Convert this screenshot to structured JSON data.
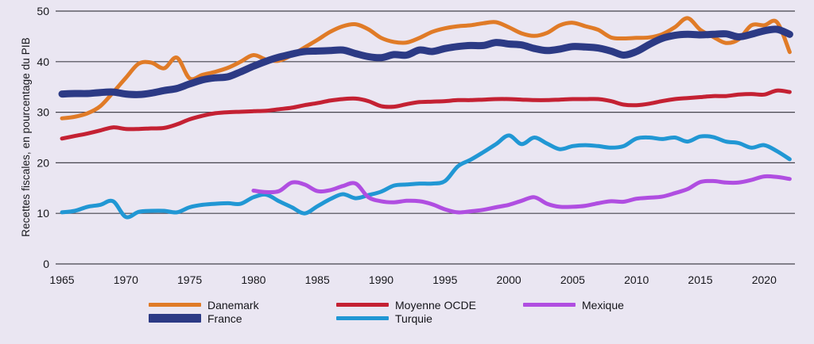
{
  "figure": {
    "background": "#eae6f2",
    "text_color": "#17171c"
  },
  "chart_data": {
    "type": "line",
    "title": "",
    "xlabel": "",
    "ylabel": "Recettes fiscales, en pourcentage du PIB",
    "ylim": [
      0,
      50
    ],
    "xlim": [
      1965,
      2022
    ],
    "yticks": [
      0,
      10,
      20,
      30,
      40,
      50
    ],
    "xticks": [
      1965,
      1970,
      1975,
      1980,
      1985,
      1990,
      1995,
      2000,
      2005,
      2010,
      2015,
      2020
    ],
    "grid": "horizontal",
    "gridline_color": "#45434d",
    "legend_position": "bottom",
    "series": [
      {
        "name": "Danemark",
        "color": "#e07b27",
        "line_width": 5,
        "start_year": 1965,
        "values": [
          28.8,
          29.1,
          29.8,
          31.2,
          33.9,
          36.8,
          39.6,
          39.8,
          38.7,
          40.8,
          36.7,
          37.4,
          38.0,
          38.8,
          40.0,
          41.3,
          40.4,
          40.2,
          41.3,
          42.8,
          44.3,
          45.9,
          47.0,
          47.4,
          46.4,
          44.7,
          43.9,
          43.8,
          44.7,
          45.9,
          46.6,
          47.0,
          47.2,
          47.6,
          47.8,
          46.8,
          45.6,
          45.1,
          45.7,
          47.2,
          47.7,
          47.0,
          46.3,
          44.8,
          44.6,
          44.7,
          44.8,
          45.4,
          46.8,
          48.6,
          46.3,
          44.9,
          43.7,
          44.4,
          47.2,
          47.2,
          47.8,
          41.9
        ]
      },
      {
        "name": "France",
        "color": "#2c3a85",
        "line_width": 9,
        "start_year": 1965,
        "values": [
          33.6,
          33.7,
          33.7,
          33.9,
          34.0,
          33.6,
          33.5,
          33.8,
          34.3,
          34.7,
          35.6,
          36.4,
          36.8,
          37.0,
          38.0,
          39.1,
          40.1,
          40.9,
          41.5,
          42.0,
          42.1,
          42.2,
          42.3,
          41.6,
          41.0,
          40.8,
          41.4,
          41.3,
          42.3,
          42.0,
          42.6,
          43.0,
          43.2,
          43.2,
          43.8,
          43.5,
          43.3,
          42.6,
          42.2,
          42.5,
          43.0,
          42.9,
          42.7,
          42.1,
          41.3,
          42.0,
          43.4,
          44.6,
          45.2,
          45.4,
          45.3,
          45.4,
          45.5,
          44.9,
          45.4,
          46.1,
          46.4,
          45.4
        ]
      },
      {
        "name": "Moyenne OCDE",
        "color": "#c42133",
        "line_width": 5,
        "start_year": 1965,
        "values": [
          24.8,
          25.3,
          25.8,
          26.4,
          27.0,
          26.7,
          26.7,
          26.8,
          26.9,
          27.6,
          28.6,
          29.3,
          29.8,
          30.0,
          30.1,
          30.2,
          30.3,
          30.6,
          30.9,
          31.4,
          31.8,
          32.3,
          32.6,
          32.7,
          32.2,
          31.2,
          31.1,
          31.6,
          32.0,
          32.1,
          32.2,
          32.4,
          32.4,
          32.5,
          32.6,
          32.6,
          32.5,
          32.4,
          32.4,
          32.5,
          32.6,
          32.6,
          32.6,
          32.2,
          31.5,
          31.4,
          31.7,
          32.2,
          32.6,
          32.8,
          33.0,
          33.2,
          33.2,
          33.5,
          33.6,
          33.5,
          34.3,
          34.0
        ]
      },
      {
        "name": "Turquie",
        "color": "#2197d4",
        "line_width": 5,
        "start_year": 1965,
        "values": [
          10.2,
          10.5,
          11.3,
          11.7,
          12.4,
          9.3,
          10.3,
          10.5,
          10.5,
          10.2,
          11.2,
          11.7,
          11.9,
          12.0,
          11.9,
          13.2,
          13.7,
          12.4,
          11.2,
          10.0,
          11.4,
          12.8,
          13.8,
          13.0,
          13.6,
          14.3,
          15.5,
          15.7,
          15.9,
          15.9,
          16.4,
          19.3,
          20.6,
          22.1,
          23.7,
          25.4,
          23.7,
          25.0,
          23.8,
          22.7,
          23.3,
          23.5,
          23.3,
          23.0,
          23.3,
          24.8,
          25.0,
          24.7,
          25.0,
          24.2,
          25.2,
          25.1,
          24.2,
          23.9,
          23.0,
          23.5,
          22.3,
          20.7
        ]
      },
      {
        "name": "Mexique",
        "color": "#b04ee1",
        "line_width": 5,
        "start_year": 1980,
        "values": [
          14.5,
          14.2,
          14.4,
          16.1,
          15.7,
          14.4,
          14.6,
          15.4,
          15.9,
          13.2,
          12.4,
          12.2,
          12.5,
          12.4,
          11.8,
          10.8,
          10.2,
          10.4,
          10.7,
          11.2,
          11.7,
          12.5,
          13.2,
          11.9,
          11.3,
          11.3,
          11.5,
          12.0,
          12.4,
          12.3,
          12.9,
          13.1,
          13.3,
          14.0,
          14.8,
          16.2,
          16.4,
          16.1,
          16.1,
          16.6,
          17.3,
          17.2,
          16.8
        ]
      }
    ],
    "legend": {
      "columns": [
        [
          "Danemark",
          "France"
        ],
        [
          "Moyenne OCDE",
          "Turquie"
        ],
        [
          "Mexique"
        ]
      ]
    }
  }
}
